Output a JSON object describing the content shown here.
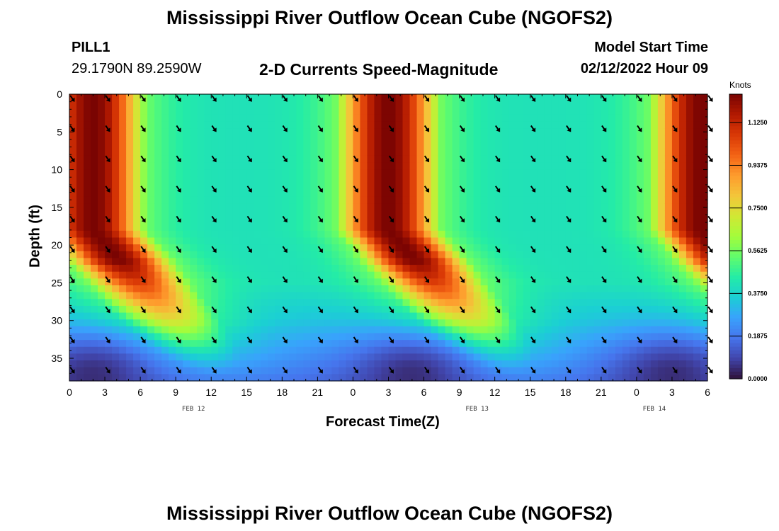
{
  "header": {
    "title": "Mississippi River Outflow Ocean Cube (NGOFS2)",
    "station": "PILL1",
    "coords": "29.1790N  89.2590W",
    "subtitle": "2-D Currents Speed-Magnitude",
    "model_start_label": "Model Start Time",
    "model_start_value": "02/12/2022 Hour 09"
  },
  "footer": {
    "title": "Mississippi River Outflow Ocean Cube (NGOFS2)"
  },
  "chart_data": {
    "type": "heatmap",
    "title": "2-D Currents Speed-Magnitude",
    "xlabel": "Forecast Time(Z)",
    "ylabel": "Depth (ft)",
    "x_tick_labels": [
      "0",
      "3",
      "6",
      "9",
      "12",
      "15",
      "18",
      "21",
      "0",
      "3",
      "6",
      "9",
      "12",
      "15",
      "18",
      "21",
      "0",
      "3",
      "6"
    ],
    "x_range_hours": [
      0,
      54
    ],
    "date_labels": [
      {
        "text": "FEB 12",
        "hour": 10.5
      },
      {
        "text": "FEB 13",
        "hour": 34.5
      },
      {
        "text": "FEB 14",
        "hour": 49.5
      }
    ],
    "y_ticks": [
      0,
      5,
      10,
      15,
      20,
      25,
      30,
      35
    ],
    "y_range": [
      0,
      38
    ],
    "y_reversed": true,
    "colorbar": {
      "title": "Knots",
      "ticks": [
        "1.1250",
        "0.9375",
        "0.7500",
        "0.5625",
        "0.3750",
        "0.1875",
        "0.0000"
      ],
      "range": [
        0,
        1.25
      ],
      "colormap": [
        "#30123b",
        "#4145ab",
        "#4675ed",
        "#39a2fc",
        "#1bcfd4",
        "#24eca6",
        "#61fc6c",
        "#a4fc3b",
        "#d1e834",
        "#f3c63a",
        "#fe9b2d",
        "#f36315",
        "#d93806",
        "#b11901",
        "#7a0402"
      ]
    },
    "speed_model": {
      "surface_peaks_hour": [
        2,
        27,
        53.5
      ],
      "peak_speed": 1.25,
      "low_speed_at_bottom_hours": [
        2,
        29,
        51
      ],
      "bottom_speed": 0.05
    },
    "vector_times_hours": [
      0,
      3,
      6,
      9,
      12,
      15,
      18,
      21,
      24,
      27,
      30,
      33,
      36,
      39,
      42,
      45,
      48,
      51,
      54
    ],
    "vector_depths_ft": [
      0,
      4,
      8,
      12,
      16,
      20,
      24,
      28,
      32,
      36
    ]
  }
}
